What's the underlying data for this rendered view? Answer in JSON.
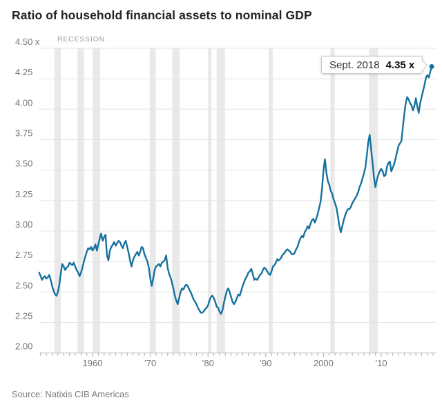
{
  "title": "Ratio of household financial assets to nominal GDP",
  "recession_label": "RECESSION",
  "source": "Source: Natixis CIB Americas",
  "callout": {
    "date": "Sept. 2018",
    "value": "4.35 x"
  },
  "colors": {
    "background": "#ffffff",
    "line": "#16719e",
    "gridline": "#e4e4e4",
    "axis_line": "#c6c6c6",
    "recession_band": "#e9e9e9",
    "tick": "#a9a9a9",
    "tick_label": "#757575",
    "title": "#232323",
    "recession_label": "#9b9b9b",
    "source": "#7a7a7a",
    "callout_border": "#c9c9c9"
  },
  "y_axis": {
    "ticks": [
      {
        "v": 4.5,
        "label": "4.50 x"
      },
      {
        "v": 4.25,
        "label": "4.25"
      },
      {
        "v": 4.0,
        "label": "4.00"
      },
      {
        "v": 3.75,
        "label": "3.75"
      },
      {
        "v": 3.5,
        "label": "3.50"
      },
      {
        "v": 3.25,
        "label": "3.25"
      },
      {
        "v": 3.0,
        "label": "3.00"
      },
      {
        "v": 2.75,
        "label": "2.75"
      },
      {
        "v": 2.5,
        "label": "2.50"
      },
      {
        "v": 2.25,
        "label": "2.25"
      },
      {
        "v": 2.0,
        "label": "2.00"
      }
    ]
  },
  "x_axis": {
    "ticks": [
      {
        "year": 1960,
        "label": "1960"
      },
      {
        "year": 1970,
        "label": "’70"
      },
      {
        "year": 1980,
        "label": "’80"
      },
      {
        "year": 1990,
        "label": "’90"
      },
      {
        "year": 2000,
        "label": "2000"
      },
      {
        "year": 2010,
        "label": "’10"
      }
    ],
    "minor_ticks": {
      "start": 1951,
      "end": 2019,
      "step": 1
    }
  },
  "recessions": [
    [
      1953.4,
      1954.5
    ],
    [
      1957.4,
      1958.5
    ],
    [
      1960.0,
      1961.3
    ],
    [
      1969.9,
      1970.95
    ],
    [
      1973.8,
      1975.1
    ],
    [
      1980.0,
      1980.6
    ],
    [
      1981.5,
      1982.95
    ],
    [
      1990.5,
      1991.2
    ],
    [
      2001.2,
      2001.95
    ],
    [
      2007.9,
      2009.4
    ]
  ],
  "chart_data": {
    "type": "line",
    "title": "Ratio of household financial assets to nominal GDP",
    "xlabel": "",
    "ylabel": "",
    "ylim": [
      2.0,
      4.5
    ],
    "x_range": [
      1950.75,
      2018.75
    ],
    "grid": "horizontal",
    "legend": "none",
    "annotations": [
      {
        "x": 2018.75,
        "y": 4.35,
        "text": "Sept. 2018 4.35 x"
      },
      {
        "text": "RECESSION",
        "meaning": "gray vertical bands mark recessions"
      }
    ],
    "series": [
      {
        "name": "Household financial assets to nominal GDP",
        "points": [
          [
            1950.75,
            2.66
          ],
          [
            1951,
            2.63
          ],
          [
            1951.25,
            2.6
          ],
          [
            1951.5,
            2.62
          ],
          [
            1951.75,
            2.63
          ],
          [
            1952,
            2.61
          ],
          [
            1952.25,
            2.62
          ],
          [
            1952.5,
            2.64
          ],
          [
            1952.75,
            2.6
          ],
          [
            1953,
            2.55
          ],
          [
            1953.25,
            2.51
          ],
          [
            1953.5,
            2.48
          ],
          [
            1953.75,
            2.47
          ],
          [
            1954,
            2.5
          ],
          [
            1954.25,
            2.56
          ],
          [
            1954.5,
            2.65
          ],
          [
            1954.75,
            2.73
          ],
          [
            1955,
            2.71
          ],
          [
            1955.25,
            2.68
          ],
          [
            1955.5,
            2.7
          ],
          [
            1955.75,
            2.71
          ],
          [
            1956,
            2.74
          ],
          [
            1956.25,
            2.73
          ],
          [
            1956.5,
            2.72
          ],
          [
            1956.75,
            2.74
          ],
          [
            1957,
            2.71
          ],
          [
            1957.25,
            2.68
          ],
          [
            1957.5,
            2.66
          ],
          [
            1957.75,
            2.63
          ],
          [
            1958,
            2.66
          ],
          [
            1958.25,
            2.7
          ],
          [
            1958.5,
            2.75
          ],
          [
            1958.75,
            2.79
          ],
          [
            1959,
            2.83
          ],
          [
            1959.25,
            2.86
          ],
          [
            1959.5,
            2.85
          ],
          [
            1959.75,
            2.87
          ],
          [
            1960,
            2.84
          ],
          [
            1960.25,
            2.86
          ],
          [
            1960.5,
            2.89
          ],
          [
            1960.75,
            2.84
          ],
          [
            1961,
            2.89
          ],
          [
            1961.25,
            2.94
          ],
          [
            1961.5,
            2.98
          ],
          [
            1961.75,
            2.92
          ],
          [
            1962,
            2.95
          ],
          [
            1962.25,
            2.97
          ],
          [
            1962.5,
            2.8
          ],
          [
            1962.75,
            2.76
          ],
          [
            1963,
            2.84
          ],
          [
            1963.25,
            2.87
          ],
          [
            1963.5,
            2.89
          ],
          [
            1963.75,
            2.91
          ],
          [
            1964,
            2.88
          ],
          [
            1964.25,
            2.9
          ],
          [
            1964.5,
            2.92
          ],
          [
            1964.75,
            2.91
          ],
          [
            1965,
            2.88
          ],
          [
            1965.25,
            2.86
          ],
          [
            1965.5,
            2.9
          ],
          [
            1965.75,
            2.92
          ],
          [
            1966,
            2.87
          ],
          [
            1966.25,
            2.82
          ],
          [
            1966.5,
            2.76
          ],
          [
            1966.75,
            2.71
          ],
          [
            1967,
            2.76
          ],
          [
            1967.25,
            2.79
          ],
          [
            1967.5,
            2.81
          ],
          [
            1967.75,
            2.83
          ],
          [
            1968,
            2.8
          ],
          [
            1968.25,
            2.83
          ],
          [
            1968.5,
            2.87
          ],
          [
            1968.75,
            2.86
          ],
          [
            1969,
            2.81
          ],
          [
            1969.25,
            2.78
          ],
          [
            1969.5,
            2.75
          ],
          [
            1969.75,
            2.7
          ],
          [
            1970,
            2.61
          ],
          [
            1970.25,
            2.55
          ],
          [
            1970.5,
            2.61
          ],
          [
            1970.75,
            2.68
          ],
          [
            1971,
            2.71
          ],
          [
            1971.25,
            2.72
          ],
          [
            1971.5,
            2.73
          ],
          [
            1971.75,
            2.71
          ],
          [
            1972,
            2.74
          ],
          [
            1972.25,
            2.75
          ],
          [
            1972.5,
            2.76
          ],
          [
            1972.75,
            2.8
          ],
          [
            1973,
            2.7
          ],
          [
            1973.25,
            2.65
          ],
          [
            1973.5,
            2.62
          ],
          [
            1973.75,
            2.58
          ],
          [
            1974,
            2.53
          ],
          [
            1974.25,
            2.47
          ],
          [
            1974.5,
            2.43
          ],
          [
            1974.75,
            2.4
          ],
          [
            1975,
            2.45
          ],
          [
            1975.25,
            2.5
          ],
          [
            1975.5,
            2.53
          ],
          [
            1975.75,
            2.52
          ],
          [
            1976,
            2.55
          ],
          [
            1976.25,
            2.56
          ],
          [
            1976.5,
            2.55
          ],
          [
            1976.75,
            2.52
          ],
          [
            1977,
            2.5
          ],
          [
            1977.25,
            2.47
          ],
          [
            1977.5,
            2.44
          ],
          [
            1977.75,
            2.42
          ],
          [
            1978,
            2.4
          ],
          [
            1978.25,
            2.37
          ],
          [
            1978.5,
            2.35
          ],
          [
            1978.75,
            2.33
          ],
          [
            1979,
            2.33
          ],
          [
            1979.25,
            2.34
          ],
          [
            1979.5,
            2.36
          ],
          [
            1979.75,
            2.37
          ],
          [
            1980,
            2.39
          ],
          [
            1980.25,
            2.43
          ],
          [
            1980.5,
            2.46
          ],
          [
            1980.75,
            2.47
          ],
          [
            1981,
            2.45
          ],
          [
            1981.25,
            2.42
          ],
          [
            1981.5,
            2.38
          ],
          [
            1981.75,
            2.37
          ],
          [
            1982,
            2.34
          ],
          [
            1982.25,
            2.32
          ],
          [
            1982.5,
            2.35
          ],
          [
            1982.75,
            2.41
          ],
          [
            1983,
            2.46
          ],
          [
            1983.25,
            2.51
          ],
          [
            1983.5,
            2.53
          ],
          [
            1983.75,
            2.5
          ],
          [
            1984,
            2.46
          ],
          [
            1984.25,
            2.42
          ],
          [
            1984.5,
            2.4
          ],
          [
            1984.75,
            2.42
          ],
          [
            1985,
            2.45
          ],
          [
            1985.25,
            2.48
          ],
          [
            1985.5,
            2.47
          ],
          [
            1985.75,
            2.51
          ],
          [
            1986,
            2.55
          ],
          [
            1986.25,
            2.58
          ],
          [
            1986.5,
            2.61
          ],
          [
            1986.75,
            2.63
          ],
          [
            1987,
            2.66
          ],
          [
            1987.25,
            2.67
          ],
          [
            1987.5,
            2.69
          ],
          [
            1987.75,
            2.65
          ],
          [
            1988,
            2.6
          ],
          [
            1988.25,
            2.61
          ],
          [
            1988.5,
            2.6
          ],
          [
            1988.75,
            2.62
          ],
          [
            1989,
            2.64
          ],
          [
            1989.25,
            2.65
          ],
          [
            1989.5,
            2.68
          ],
          [
            1989.75,
            2.7
          ],
          [
            1990,
            2.69
          ],
          [
            1990.25,
            2.67
          ],
          [
            1990.5,
            2.65
          ],
          [
            1990.75,
            2.64
          ],
          [
            1991,
            2.67
          ],
          [
            1991.25,
            2.71
          ],
          [
            1991.5,
            2.72
          ],
          [
            1991.75,
            2.74
          ],
          [
            1992,
            2.77
          ],
          [
            1992.25,
            2.76
          ],
          [
            1992.5,
            2.77
          ],
          [
            1992.75,
            2.79
          ],
          [
            1993,
            2.81
          ],
          [
            1993.25,
            2.82
          ],
          [
            1993.5,
            2.84
          ],
          [
            1993.75,
            2.85
          ],
          [
            1994,
            2.84
          ],
          [
            1994.25,
            2.83
          ],
          [
            1994.5,
            2.81
          ],
          [
            1994.75,
            2.81
          ],
          [
            1995,
            2.82
          ],
          [
            1995.25,
            2.85
          ],
          [
            1995.5,
            2.87
          ],
          [
            1995.75,
            2.91
          ],
          [
            1996,
            2.94
          ],
          [
            1996.25,
            2.96
          ],
          [
            1996.5,
            2.95
          ],
          [
            1996.75,
            2.99
          ],
          [
            1997,
            3.01
          ],
          [
            1997.25,
            3.04
          ],
          [
            1997.5,
            3.02
          ],
          [
            1997.75,
            3.06
          ],
          [
            1998,
            3.09
          ],
          [
            1998.25,
            3.1
          ],
          [
            1998.5,
            3.07
          ],
          [
            1998.75,
            3.1
          ],
          [
            1999,
            3.14
          ],
          [
            1999.25,
            3.19
          ],
          [
            1999.5,
            3.24
          ],
          [
            1999.75,
            3.35
          ],
          [
            2000,
            3.5
          ],
          [
            2000.25,
            3.59
          ],
          [
            2000.5,
            3.48
          ],
          [
            2000.75,
            3.41
          ],
          [
            2001,
            3.38
          ],
          [
            2001.25,
            3.33
          ],
          [
            2001.5,
            3.31
          ],
          [
            2001.75,
            3.26
          ],
          [
            2002,
            3.23
          ],
          [
            2002.25,
            3.19
          ],
          [
            2002.5,
            3.12
          ],
          [
            2002.75,
            3.04
          ],
          [
            2003,
            2.99
          ],
          [
            2003.25,
            3.04
          ],
          [
            2003.5,
            3.09
          ],
          [
            2003.75,
            3.13
          ],
          [
            2004,
            3.16
          ],
          [
            2004.25,
            3.18
          ],
          [
            2004.5,
            3.18
          ],
          [
            2004.75,
            3.2
          ],
          [
            2005,
            3.23
          ],
          [
            2005.25,
            3.25
          ],
          [
            2005.5,
            3.27
          ],
          [
            2005.75,
            3.29
          ],
          [
            2006,
            3.32
          ],
          [
            2006.25,
            3.36
          ],
          [
            2006.5,
            3.39
          ],
          [
            2006.75,
            3.43
          ],
          [
            2007,
            3.47
          ],
          [
            2007.25,
            3.52
          ],
          [
            2007.5,
            3.62
          ],
          [
            2007.75,
            3.73
          ],
          [
            2008,
            3.79
          ],
          [
            2008.25,
            3.67
          ],
          [
            2008.5,
            3.56
          ],
          [
            2008.75,
            3.44
          ],
          [
            2009,
            3.36
          ],
          [
            2009.25,
            3.42
          ],
          [
            2009.5,
            3.46
          ],
          [
            2009.75,
            3.49
          ],
          [
            2010,
            3.51
          ],
          [
            2010.25,
            3.49
          ],
          [
            2010.5,
            3.45
          ],
          [
            2010.75,
            3.46
          ],
          [
            2011,
            3.53
          ],
          [
            2011.25,
            3.56
          ],
          [
            2011.5,
            3.57
          ],
          [
            2011.75,
            3.49
          ],
          [
            2012,
            3.52
          ],
          [
            2012.25,
            3.55
          ],
          [
            2012.5,
            3.6
          ],
          [
            2012.75,
            3.65
          ],
          [
            2013,
            3.7
          ],
          [
            2013.25,
            3.72
          ],
          [
            2013.5,
            3.74
          ],
          [
            2013.75,
            3.85
          ],
          [
            2014,
            3.96
          ],
          [
            2014.25,
            4.05
          ],
          [
            2014.5,
            4.1
          ],
          [
            2014.75,
            4.08
          ],
          [
            2015,
            4.05
          ],
          [
            2015.25,
            4.03
          ],
          [
            2015.5,
            3.99
          ],
          [
            2015.75,
            4.03
          ],
          [
            2016,
            4.09
          ],
          [
            2016.25,
            4.02
          ],
          [
            2016.5,
            3.97
          ],
          [
            2016.75,
            4.05
          ],
          [
            2017,
            4.1
          ],
          [
            2017.25,
            4.15
          ],
          [
            2017.5,
            4.2
          ],
          [
            2017.75,
            4.26
          ],
          [
            2018,
            4.28
          ],
          [
            2018.25,
            4.26
          ],
          [
            2018.5,
            4.31
          ],
          [
            2018.75,
            4.35
          ]
        ]
      }
    ]
  }
}
